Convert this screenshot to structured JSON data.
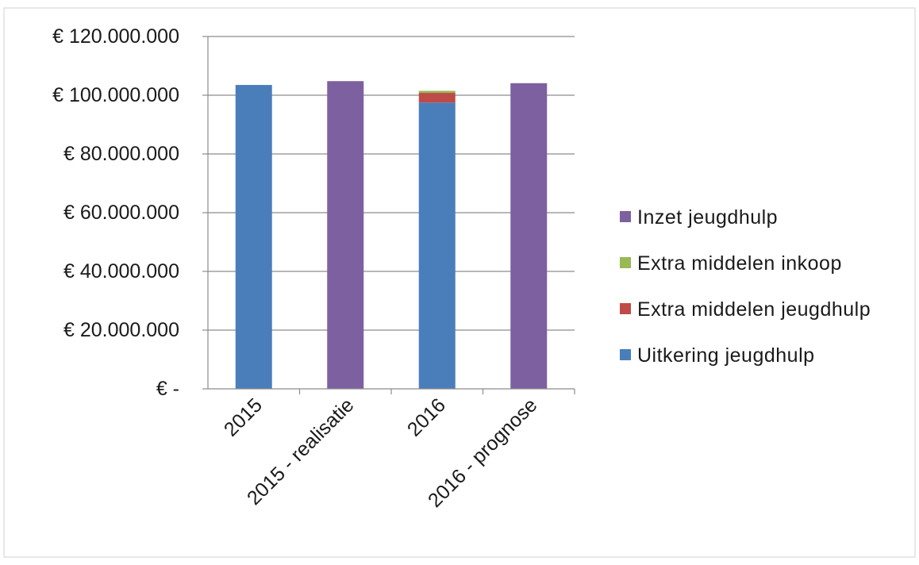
{
  "chart_data": {
    "type": "bar",
    "stacked": true,
    "categories": [
      "2015",
      "2015 - realisatie",
      "2016",
      "2016 - prognose"
    ],
    "series": [
      {
        "name": "Uitkering jeugdhulp",
        "color": "#4a7ebb",
        "values": [
          103500000,
          0,
          97500000,
          0
        ]
      },
      {
        "name": "Extra middelen jeugdhulp",
        "color": "#be4b48",
        "values": [
          0,
          0,
          3300000,
          0
        ]
      },
      {
        "name": "Extra middelen inkoop",
        "color": "#98b954",
        "values": [
          0,
          0,
          700000,
          0
        ]
      },
      {
        "name": "Inzet jeugdhulp",
        "color": "#7d60a0",
        "values": [
          0,
          104800000,
          0,
          104100000
        ]
      }
    ],
    "legend_order": [
      "Inzet jeugdhulp",
      "Extra middelen inkoop",
      "Extra middelen jeugdhulp",
      "Uitkering jeugdhulp"
    ],
    "y_tick_labels": [
      "€ -",
      "€ 20.000.000",
      "€ 40.000.000",
      "€ 60.000.000",
      "€ 80.000.000",
      "€ 100.000.000",
      "€ 120.000.000"
    ],
    "ylim": [
      0,
      120000000
    ],
    "grid": true,
    "legend_position": "right",
    "xlabel": "",
    "ylabel": "",
    "title": ""
  }
}
